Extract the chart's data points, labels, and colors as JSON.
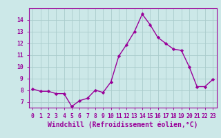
{
  "x": [
    0,
    1,
    2,
    3,
    4,
    5,
    6,
    7,
    8,
    9,
    10,
    11,
    12,
    13,
    14,
    15,
    16,
    17,
    18,
    19,
    20,
    21,
    22,
    23
  ],
  "y": [
    8.1,
    7.9,
    7.9,
    7.7,
    7.7,
    6.6,
    7.1,
    7.3,
    8.0,
    7.8,
    8.7,
    10.9,
    11.9,
    13.0,
    14.5,
    13.6,
    12.5,
    12.0,
    11.5,
    11.4,
    10.0,
    8.3,
    8.3,
    8.9
  ],
  "line_color": "#990099",
  "marker": "D",
  "markersize": 2.2,
  "linewidth": 1.0,
  "background_color": "#cce8e8",
  "grid_color": "#aacccc",
  "xlabel": "Windchill (Refroidissement éolien,°C)",
  "ylim": [
    6.5,
    15.0
  ],
  "xlim": [
    -0.5,
    23.5
  ],
  "yticks": [
    7,
    8,
    9,
    10,
    11,
    12,
    13,
    14
  ],
  "xticks": [
    0,
    1,
    2,
    3,
    4,
    5,
    6,
    7,
    8,
    9,
    10,
    11,
    12,
    13,
    14,
    15,
    16,
    17,
    18,
    19,
    20,
    21,
    22,
    23
  ],
  "tick_color": "#990099",
  "label_color": "#990099",
  "tick_fontsize": 5.8,
  "xlabel_fontsize": 7.0,
  "spine_color": "#990099"
}
